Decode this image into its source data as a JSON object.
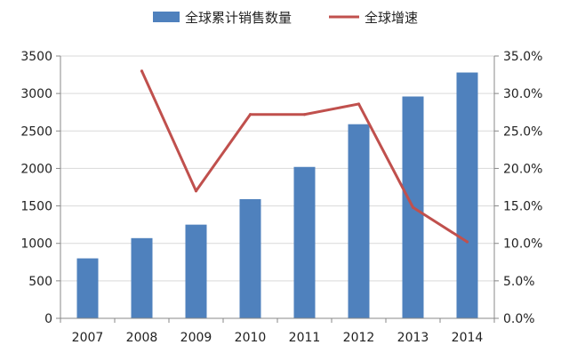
{
  "chart_data": {
    "type": "bar+line",
    "categories": [
      "2007",
      "2008",
      "2009",
      "2010",
      "2011",
      "2012",
      "2013",
      "2014"
    ],
    "series": [
      {
        "name": "全球累计销售数量",
        "type": "bar",
        "axis": "left",
        "color": "#4f81bd",
        "values": [
          800,
          1070,
          1250,
          1590,
          2020,
          2590,
          2960,
          3280
        ]
      },
      {
        "name": "全球增速",
        "type": "line",
        "axis": "right",
        "color": "#c0504d",
        "values": [
          null,
          33.0,
          17.0,
          27.2,
          27.2,
          28.6,
          14.8,
          10.2
        ]
      }
    ],
    "y_left": {
      "ylim": [
        0,
        3500
      ],
      "ticks": [
        0,
        500,
        1000,
        1500,
        2000,
        2500,
        3000,
        3500
      ]
    },
    "y_right": {
      "ylim": [
        0,
        35
      ],
      "ticks": [
        0,
        5,
        10,
        15,
        20,
        25,
        30,
        35
      ],
      "tick_labels": [
        "0.0%",
        "5.0%",
        "10.0%",
        "15.0%",
        "20.0%",
        "25.0%",
        "30.0%",
        "35.0%"
      ]
    },
    "grid": true,
    "legend": "top-center",
    "title": "",
    "xlabel": "",
    "ylabel": ""
  }
}
